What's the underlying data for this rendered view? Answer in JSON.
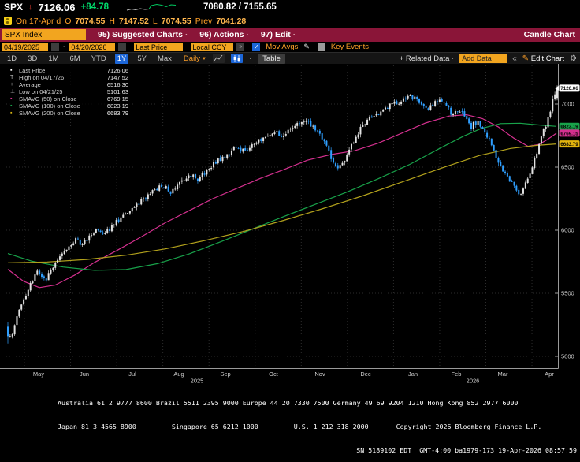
{
  "glyphs": {
    "down_arrow": "↓",
    "menu_dot": "·",
    "dash": "-",
    "daily_arrow": "▼",
    "check": "✓",
    "pencil": "✎",
    "gear": "⚙",
    "double_chevron": "«",
    "chevron_right": "»"
  },
  "quote": {
    "ticker": "SPX",
    "last": "7126.06",
    "change": "+84.78",
    "range": "7080.82 / 7155.65",
    "session_prefix": "On 17-Apr d",
    "open_label": "O",
    "open": "7074.55",
    "high_label": "H",
    "high": "7147.52",
    "low_label": "L",
    "low": "7074.55",
    "prev_label": "Prev",
    "prev": "7041.28"
  },
  "menubar": {
    "security_input": "SPX Index",
    "suggested_charts": "95) Suggested Charts",
    "actions": "96) Actions",
    "edit": "97) Edit",
    "right_label": "Candle Chart"
  },
  "controls": {
    "date_from": "04/19/2025",
    "date_to": "04/20/2026",
    "price_source": "Last Price",
    "currency": "Local CCY",
    "mov_avgs_label": "Mov Avgs",
    "mov_avgs_checked": true,
    "key_events_label": "Key Events",
    "key_events_checked": false
  },
  "toolbar": {
    "periods": [
      "1D",
      "3D",
      "1M",
      "6M",
      "YTD",
      "1Y",
      "5Y",
      "Max"
    ],
    "active_period": "1Y",
    "frequency": "Daily",
    "table_label": "Table",
    "related_data_label": "+ Related Data",
    "add_data_placeholder": "Add Data",
    "edit_chart_label": "Edit Chart"
  },
  "legend": {
    "rows": [
      {
        "marker": "▪",
        "marker_color": "#ffffff",
        "label": "Last Price",
        "value": "7126.06"
      },
      {
        "marker": "T",
        "marker_color": "#bbbbbb",
        "label": "High on 04/17/26",
        "value": "7147.52"
      },
      {
        "marker": "+",
        "marker_color": "#bbbbbb",
        "label": "Average",
        "value": "6516.30"
      },
      {
        "marker": "⊥",
        "marker_color": "#bbbbbb",
        "label": "Low on 04/21/25",
        "value": "5101.63"
      },
      {
        "marker": "▪",
        "marker_color": "#d4308f",
        "label": "SMAVG (50)  on Close",
        "value": "6769.15"
      },
      {
        "marker": "▪",
        "marker_color": "#18a24a",
        "label": "SMAVG (100) on Close",
        "value": "6823.19"
      },
      {
        "marker": "▪",
        "marker_color": "#d8b512",
        "label": "SMAVG (200) on Close",
        "value": "6683.79"
      }
    ]
  },
  "chart_data": {
    "type": "candlestick",
    "symbol": "SPX Index",
    "period": "1Y",
    "frequency": "Daily",
    "title": "SPX Index 1Y Daily Candle Chart",
    "ylim": [
      4900,
      7330
    ],
    "y_ticks": [
      7000,
      6500,
      6000,
      5500,
      5000
    ],
    "x_months": [
      "May",
      "Jun",
      "Jul",
      "Aug",
      "Sep",
      "Oct",
      "Nov",
      "Dec",
      "Jan",
      "Feb",
      "Mar",
      "Apr"
    ],
    "x_years": [
      {
        "label": "2025",
        "x": 250
      },
      {
        "label": "2026",
        "x": 600
      }
    ],
    "last_price": 7126.06,
    "high": 7147.52,
    "high_date": "04/17/26",
    "average": 6516.3,
    "low": 5101.63,
    "low_date": "04/21/25",
    "colors": {
      "up": "#e2e2e2",
      "down": "#2f9fff",
      "grid": "#2d2d2d",
      "axis": "#9a9a9a"
    },
    "close_trend": [
      [
        10,
        5190
      ],
      [
        14,
        5130
      ],
      [
        20,
        5280
      ],
      [
        26,
        5400
      ],
      [
        32,
        5480
      ],
      [
        40,
        5590
      ],
      [
        48,
        5680
      ],
      [
        58,
        5605
      ],
      [
        66,
        5700
      ],
      [
        76,
        5790
      ],
      [
        86,
        5860
      ],
      [
        96,
        5930
      ],
      [
        104,
        5880
      ],
      [
        114,
        5960
      ],
      [
        124,
        6010
      ],
      [
        134,
        5975
      ],
      [
        146,
        6060
      ],
      [
        158,
        6125
      ],
      [
        170,
        6185
      ],
      [
        182,
        6245
      ],
      [
        194,
        6305
      ],
      [
        206,
        6360
      ],
      [
        216,
        6300
      ],
      [
        228,
        6390
      ],
      [
        240,
        6440
      ],
      [
        252,
        6405
      ],
      [
        264,
        6485
      ],
      [
        276,
        6545
      ],
      [
        288,
        6605
      ],
      [
        300,
        6660
      ],
      [
        312,
        6615
      ],
      [
        324,
        6690
      ],
      [
        336,
        6750
      ],
      [
        348,
        6790
      ],
      [
        358,
        6725
      ],
      [
        368,
        6800
      ],
      [
        378,
        6840
      ],
      [
        388,
        6870
      ],
      [
        398,
        6820
      ],
      [
        408,
        6750
      ],
      [
        418,
        6605
      ],
      [
        428,
        6485
      ],
      [
        436,
        6545
      ],
      [
        446,
        6680
      ],
      [
        456,
        6790
      ],
      [
        466,
        6870
      ],
      [
        476,
        6920
      ],
      [
        486,
        6950
      ],
      [
        496,
        6990
      ],
      [
        506,
        7010
      ],
      [
        516,
        7040
      ],
      [
        526,
        7060
      ],
      [
        534,
        7000
      ],
      [
        542,
        6955
      ],
      [
        550,
        7000
      ],
      [
        558,
        7040
      ],
      [
        566,
        6980
      ],
      [
        574,
        6915
      ],
      [
        582,
        6960
      ],
      [
        590,
        6890
      ],
      [
        598,
        6825
      ],
      [
        606,
        6860
      ],
      [
        614,
        6790
      ],
      [
        622,
        6700
      ],
      [
        630,
        6580
      ],
      [
        638,
        6480
      ],
      [
        646,
        6400
      ],
      [
        654,
        6330
      ],
      [
        660,
        6290
      ],
      [
        666,
        6360
      ],
      [
        672,
        6450
      ],
      [
        678,
        6550
      ],
      [
        684,
        6680
      ],
      [
        690,
        6790
      ],
      [
        695,
        6880
      ],
      [
        699,
        6970
      ],
      [
        702,
        7040
      ],
      [
        705,
        7100
      ],
      [
        707,
        7126
      ]
    ],
    "candle_count": 244,
    "smavg": [
      {
        "name": "SMAVG (50) on Close",
        "period": 50,
        "last": 6769.15,
        "color": "#d4308f",
        "points": [
          [
            10,
            5690
          ],
          [
            30,
            5595
          ],
          [
            50,
            5545
          ],
          [
            70,
            5565
          ],
          [
            95,
            5645
          ],
          [
            120,
            5745
          ],
          [
            150,
            5845
          ],
          [
            180,
            5950
          ],
          [
            210,
            6060
          ],
          [
            240,
            6155
          ],
          [
            270,
            6250
          ],
          [
            300,
            6330
          ],
          [
            330,
            6410
          ],
          [
            360,
            6480
          ],
          [
            390,
            6555
          ],
          [
            420,
            6600
          ],
          [
            450,
            6630
          ],
          [
            480,
            6690
          ],
          [
            510,
            6770
          ],
          [
            540,
            6850
          ],
          [
            570,
            6905
          ],
          [
            592,
            6915
          ],
          [
            612,
            6885
          ],
          [
            632,
            6820
          ],
          [
            652,
            6730
          ],
          [
            670,
            6665
          ],
          [
            684,
            6680
          ],
          [
            695,
            6720
          ],
          [
            706,
            6769
          ]
        ]
      },
      {
        "name": "SMAVG (100) on Close",
        "period": 100,
        "last": 6823.19,
        "color": "#18a24a",
        "points": [
          [
            10,
            5815
          ],
          [
            40,
            5755
          ],
          [
            80,
            5708
          ],
          [
            120,
            5682
          ],
          [
            160,
            5688
          ],
          [
            200,
            5735
          ],
          [
            240,
            5812
          ],
          [
            280,
            5908
          ],
          [
            320,
            6008
          ],
          [
            360,
            6108
          ],
          [
            400,
            6205
          ],
          [
            440,
            6302
          ],
          [
            480,
            6408
          ],
          [
            520,
            6522
          ],
          [
            560,
            6655
          ],
          [
            588,
            6745
          ],
          [
            610,
            6805
          ],
          [
            635,
            6845
          ],
          [
            660,
            6848
          ],
          [
            682,
            6835
          ],
          [
            706,
            6823
          ]
        ]
      },
      {
        "name": "SMAVG (200) on Close",
        "period": 200,
        "last": 6683.79,
        "color": "#b3a21c",
        "points": [
          [
            10,
            5742
          ],
          [
            60,
            5748
          ],
          [
            110,
            5768
          ],
          [
            160,
            5802
          ],
          [
            210,
            5852
          ],
          [
            260,
            5918
          ],
          [
            310,
            5992
          ],
          [
            360,
            6078
          ],
          [
            410,
            6172
          ],
          [
            460,
            6272
          ],
          [
            510,
            6382
          ],
          [
            560,
            6492
          ],
          [
            608,
            6592
          ],
          [
            648,
            6648
          ],
          [
            680,
            6672
          ],
          [
            706,
            6684
          ]
        ]
      }
    ],
    "axis_chips": [
      {
        "value": "7126.06",
        "bg": "#ffffff"
      },
      {
        "value": "6823.19",
        "bg": "#18a24a"
      },
      {
        "value": "6769.15",
        "bg": "#d4308f"
      },
      {
        "value": "6683.79",
        "bg": "#e3b40e"
      }
    ]
  },
  "footer": {
    "line1": "Australia 61 2 9777 8600 Brazil 5511 2395 9000 Europe 44 20 7330 7500 Germany 49 69 9204 1210 Hong Kong 852 2977 6000",
    "line2": "Japan 81 3 4565 8900         Singapore 65 6212 1000         U.S. 1 212 318 2000       Copyright 2026 Bloomberg Finance L.P.",
    "line3": "SN 5189102 EDT  GMT-4:00 ba1979-173 19-Apr-2026 08:57:59"
  }
}
